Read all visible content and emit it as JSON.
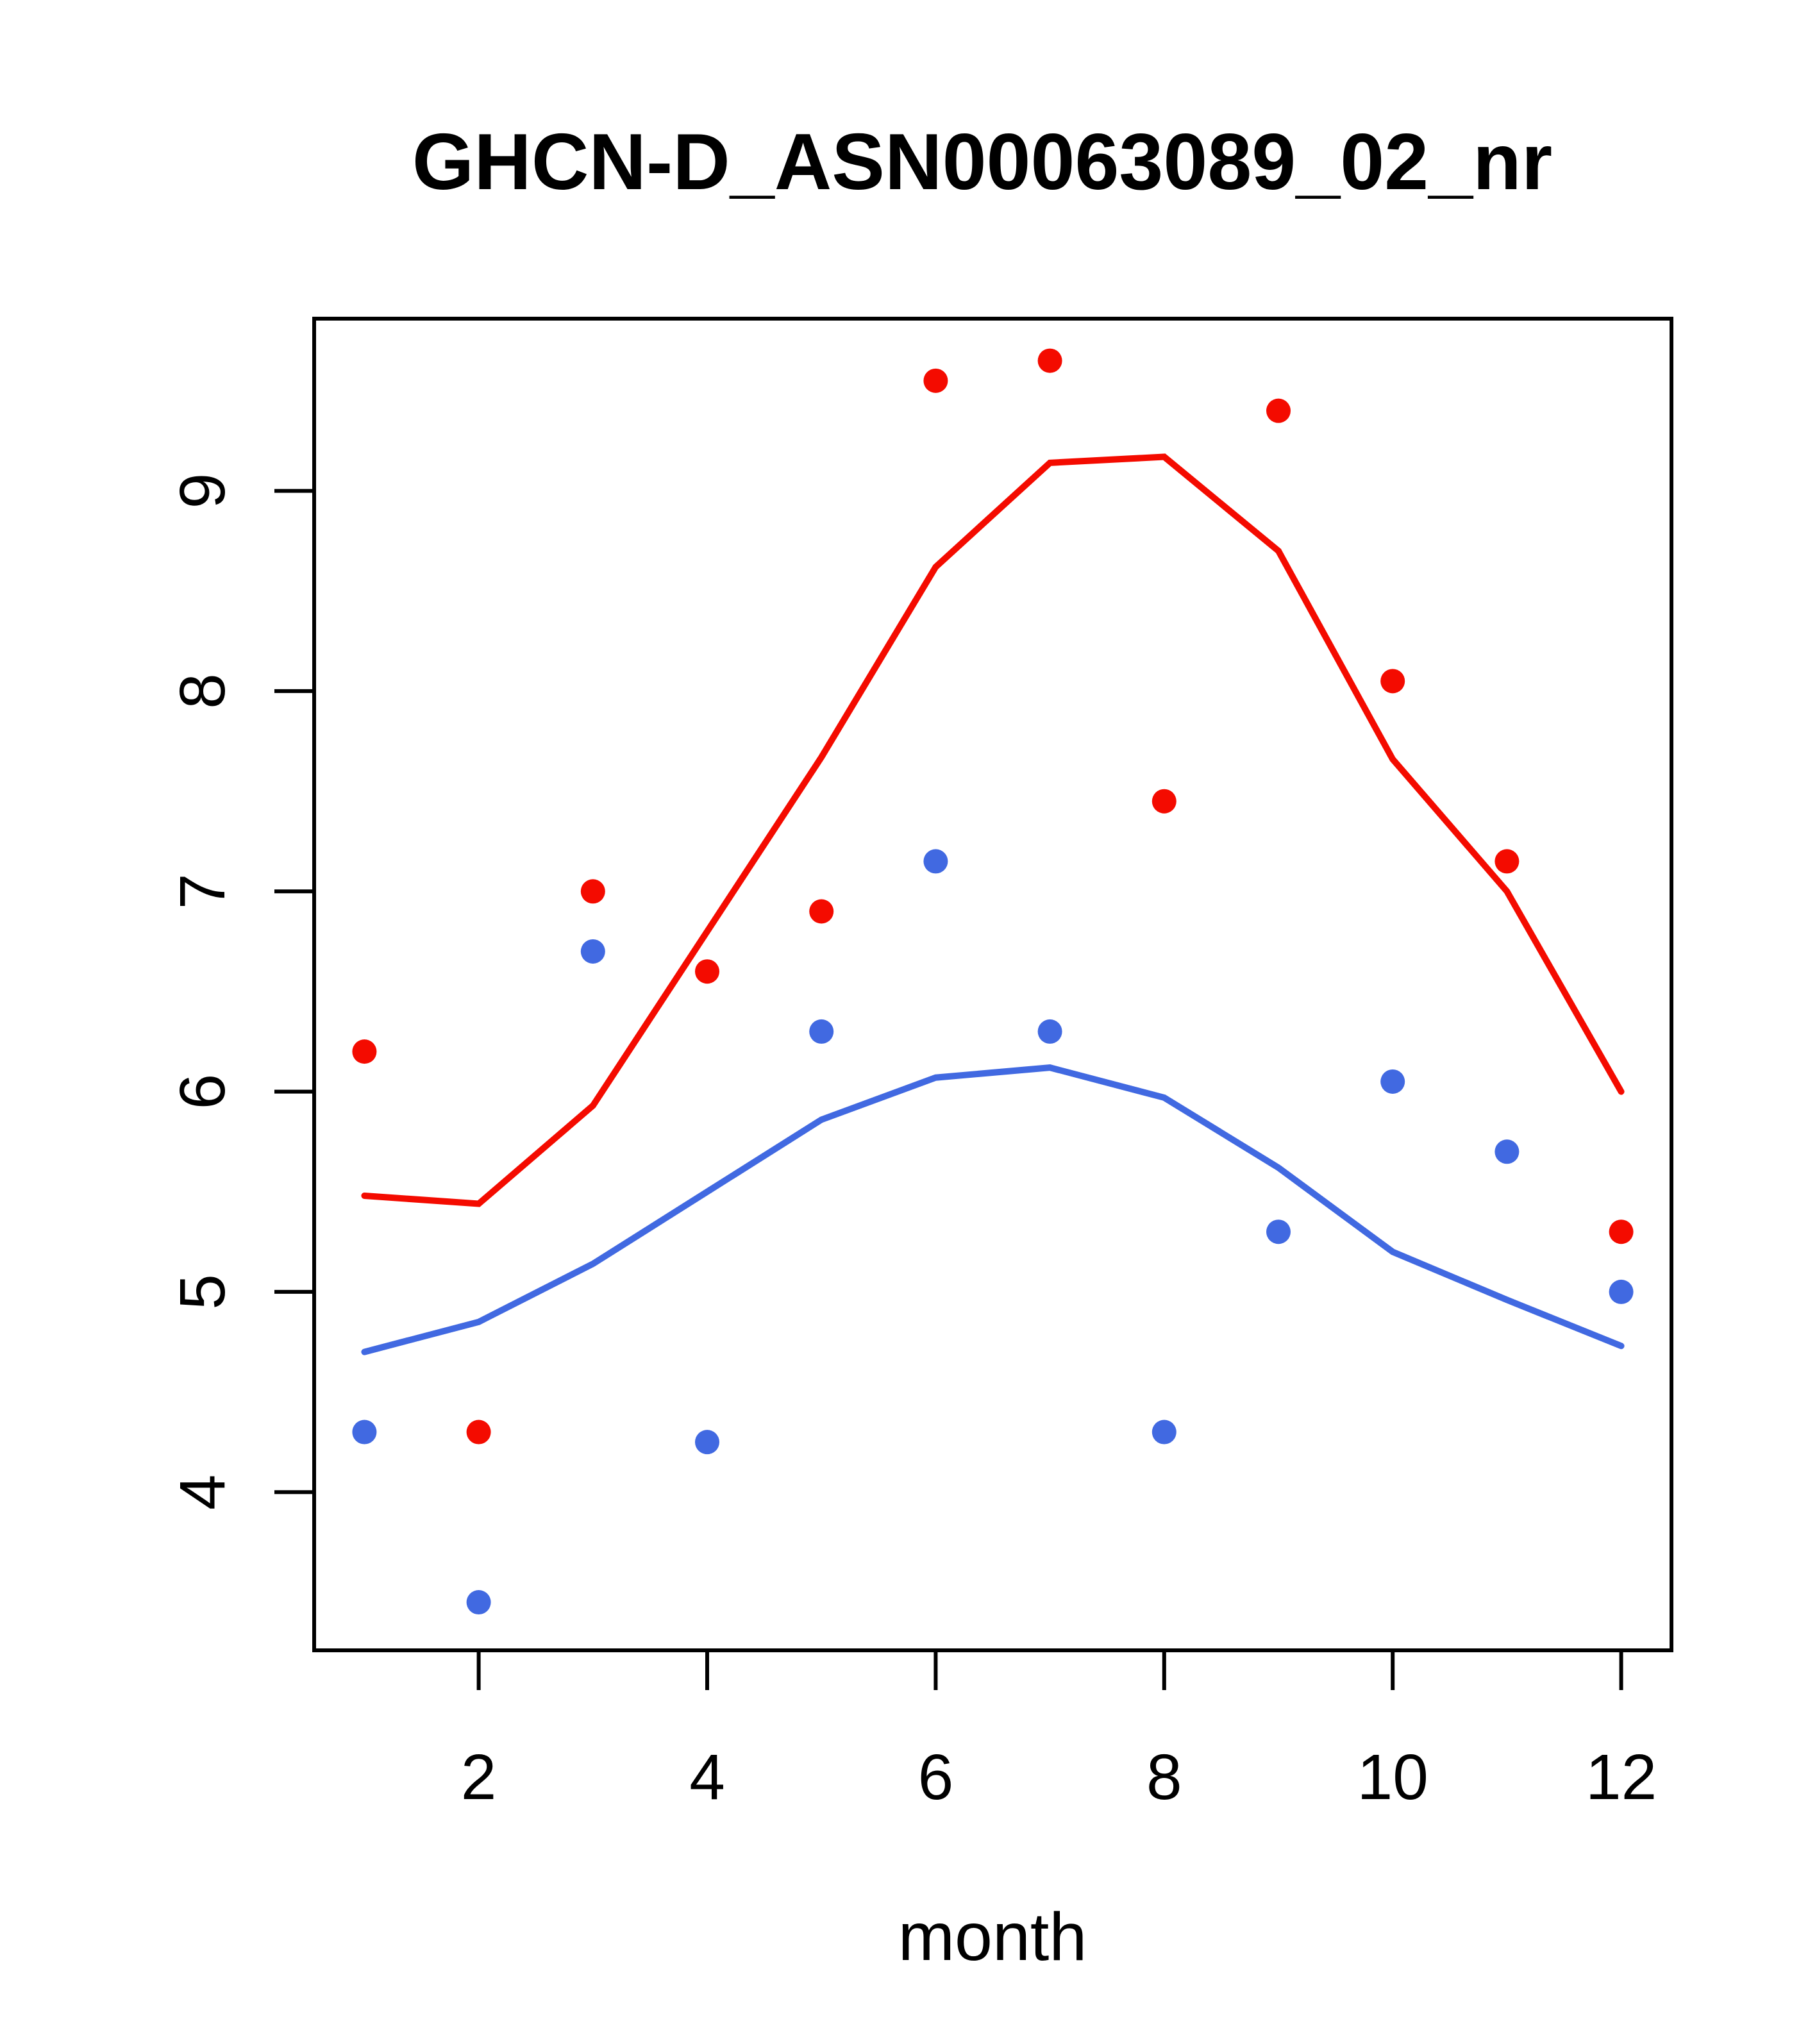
{
  "colors": {
    "red": "#f40b00",
    "blue": "#4169e1",
    "axis": "#000000",
    "background": "#ffffff"
  },
  "chart_data": {
    "type": "scatter",
    "title": "GHCN-D_ASN00063089_02_nr",
    "xlabel": "month",
    "ylabel": "",
    "x": [
      1,
      2,
      3,
      4,
      5,
      6,
      7,
      8,
      9,
      10,
      11,
      12
    ],
    "x_ticks": [
      2,
      4,
      6,
      8,
      10,
      12
    ],
    "y_ticks": [
      4,
      5,
      6,
      7,
      8,
      9
    ],
    "xlim": [
      0.56,
      12.44
    ],
    "ylim": [
      3.21,
      9.86
    ],
    "grid": false,
    "legend": "none",
    "series": [
      {
        "name": "red-smooth-line",
        "style": "line",
        "color_key": "red",
        "values": [
          5.48,
          5.44,
          5.93,
          6.8,
          7.67,
          8.62,
          9.14,
          9.17,
          8.7,
          7.66,
          7.0,
          6.0
        ]
      },
      {
        "name": "blue-smooth-line",
        "style": "line",
        "color_key": "blue",
        "values": [
          4.7,
          4.85,
          5.14,
          5.5,
          5.86,
          6.07,
          6.12,
          5.97,
          5.62,
          5.2,
          4.96,
          4.73
        ]
      },
      {
        "name": "red-points",
        "style": "points",
        "color_key": "red",
        "values": [
          6.2,
          4.3,
          7.0,
          6.6,
          6.9,
          9.55,
          9.65,
          7.45,
          9.4,
          8.05,
          7.15,
          5.3
        ]
      },
      {
        "name": "blue-points",
        "style": "points",
        "color_key": "blue",
        "values": [
          4.3,
          3.45,
          6.7,
          4.25,
          6.3,
          7.15,
          6.3,
          4.3,
          5.3,
          6.05,
          5.7,
          5.0
        ]
      }
    ]
  }
}
